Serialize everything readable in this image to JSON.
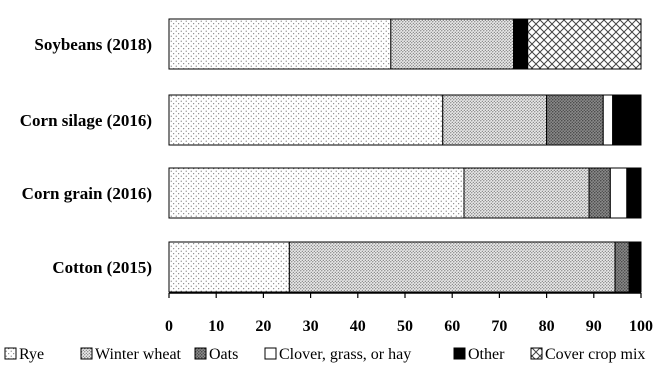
{
  "chart_data": {
    "type": "bar",
    "orientation": "horizontal",
    "stacked": true,
    "title": "",
    "xlabel": "",
    "ylabel": "",
    "xlim": [
      0,
      100
    ],
    "xticks": [
      "0",
      "10",
      "20",
      "30",
      "40",
      "50",
      "60",
      "70",
      "80",
      "90",
      "100"
    ],
    "grid": false,
    "legend_position": "bottom",
    "categories": [
      "Soybeans (2018)",
      "Corn silage (2016)",
      "Corn grain (2016)",
      "Cotton (2015)"
    ],
    "series": [
      {
        "name": "Rye",
        "pattern": "sparse-dots",
        "values": [
          47,
          58,
          62.5,
          25.5
        ]
      },
      {
        "name": "Winter wheat",
        "pattern": "dense-dots",
        "values": [
          26,
          22,
          26.5,
          69
        ]
      },
      {
        "name": "Oats",
        "pattern": "dark-dots",
        "values": [
          0,
          12,
          4.5,
          3
        ]
      },
      {
        "name": "Clover, grass, or hay",
        "pattern": "white",
        "values": [
          0,
          2,
          3.5,
          0
        ]
      },
      {
        "name": "Other",
        "pattern": "black",
        "values": [
          3,
          6,
          3,
          2.5
        ]
      },
      {
        "name": "Cover crop mix",
        "pattern": "crosshatch",
        "values": [
          24,
          0,
          0,
          0
        ]
      }
    ]
  }
}
